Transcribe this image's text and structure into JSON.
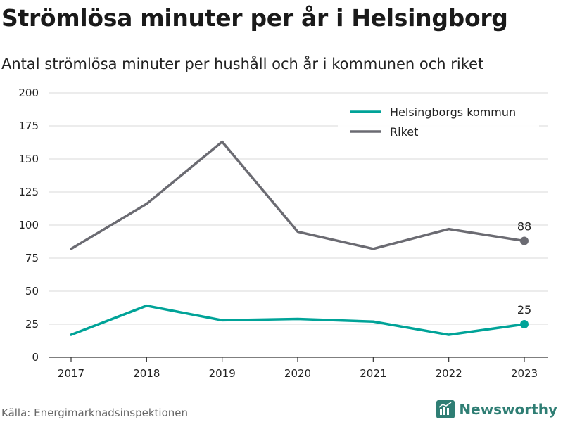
{
  "title": "Strömlösa minuter per år i Helsingborg",
  "subtitle": "Antal strömlösa minuter per hushåll och år i kommunen och riket",
  "source": "Källa: Energimarknadsinspektionen",
  "brand": {
    "name": "Newsworthy",
    "icon": "newsworthy-logo-icon",
    "color": "#2f7e74"
  },
  "chart_data": {
    "type": "line",
    "x": [
      "2017",
      "2018",
      "2019",
      "2020",
      "2021",
      "2022",
      "2023"
    ],
    "yticks": [
      "0",
      "25",
      "50",
      "75",
      "100",
      "125",
      "150",
      "175",
      "200"
    ],
    "ylim": [
      0,
      200
    ],
    "grid": true,
    "legend_position": "top-right",
    "series": [
      {
        "name": "Helsingborgs kommun",
        "color": "#00a398",
        "values": [
          17,
          39,
          28,
          29,
          27,
          17,
          25
        ],
        "end_label": "25"
      },
      {
        "name": "Riket",
        "color": "#6b6b72",
        "values": [
          82,
          116,
          163,
          95,
          82,
          97,
          88
        ],
        "end_label": "88"
      }
    ]
  }
}
